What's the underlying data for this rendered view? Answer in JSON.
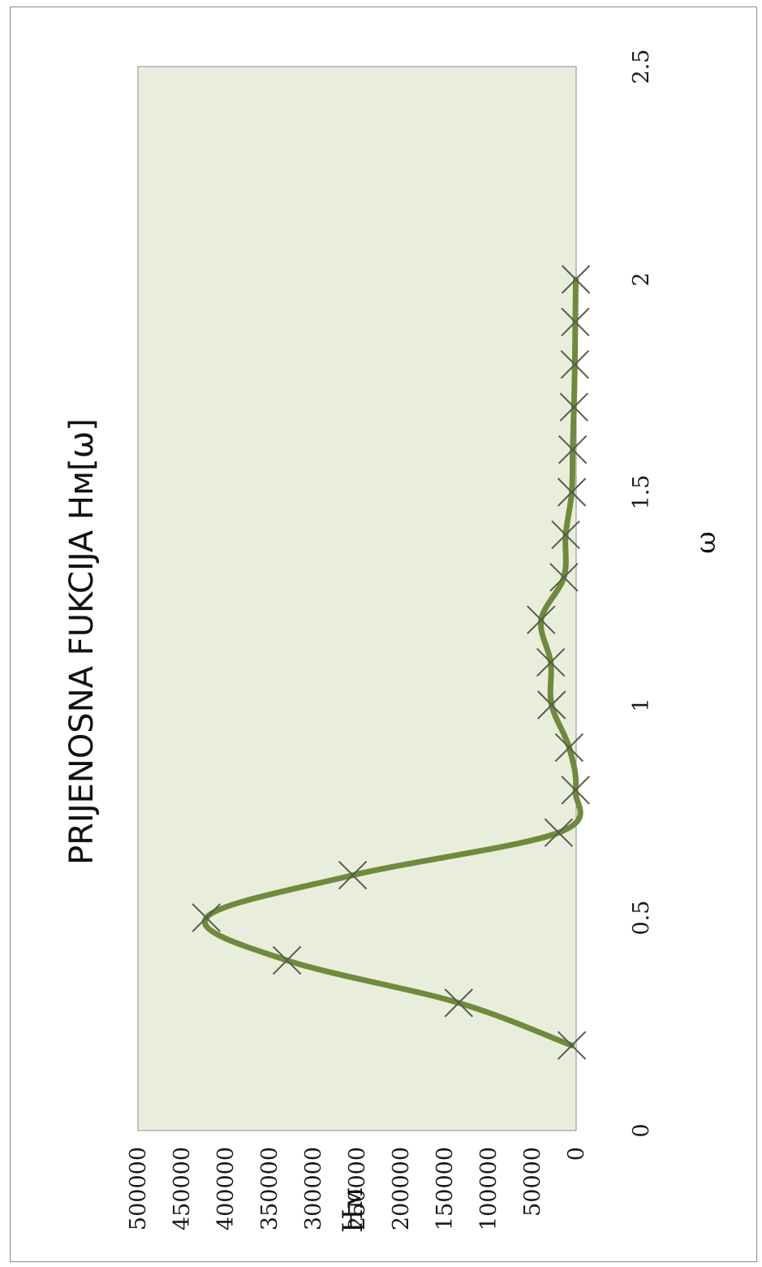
{
  "chart_data": {
    "type": "line",
    "title": "PRIJENOSNA FUKCIJA Hᴍ[ω]",
    "xlabel": "ω",
    "ylabel": "Hᴍ",
    "xlim": [
      0,
      2.5
    ],
    "ylim": [
      0,
      500000
    ],
    "x_ticks": [
      "0",
      "0.5",
      "1",
      "1.5",
      "2",
      "2.5"
    ],
    "y_ticks": [
      "0",
      "50000",
      "100000",
      "150000",
      "200000",
      "250000",
      "300000",
      "350000",
      "400000",
      "450000",
      "500000"
    ],
    "grid": false,
    "rotated": "90deg counter-clockwise",
    "series": [
      {
        "marker": "x",
        "color": "#6e8b3d",
        "x": [
          0.2,
          0.3,
          0.4,
          0.5,
          0.6,
          0.7,
          0.8,
          0.9,
          1.0,
          1.1,
          1.2,
          1.3,
          1.4,
          1.5,
          1.6,
          1.7,
          1.8,
          1.9,
          2.0
        ],
        "values": [
          5000,
          134000,
          330000,
          422000,
          255000,
          20000,
          700,
          8000,
          28000,
          29000,
          40000,
          14000,
          12000,
          5000,
          4000,
          2500,
          1500,
          1000,
          400
        ]
      }
    ],
    "colors": {
      "plot_bg": "#e9eedc",
      "line": "#6e8b3d",
      "marker": "#5a5a4a"
    }
  }
}
